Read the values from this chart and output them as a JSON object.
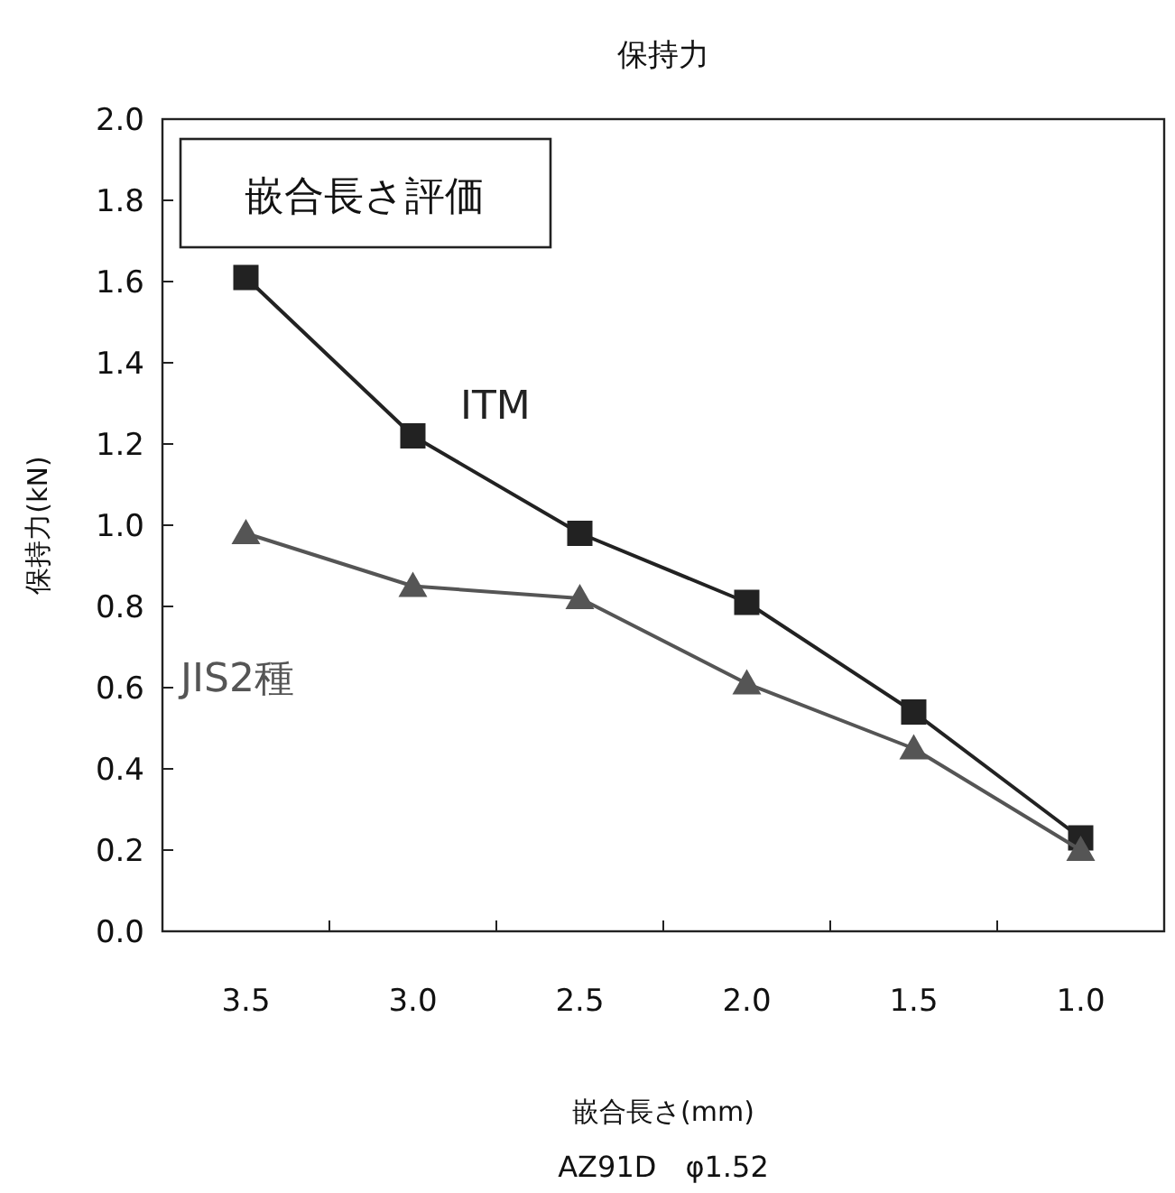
{
  "chart_data": {
    "type": "line",
    "title": "保持力",
    "xlabel": "嵌合長さ(mm)",
    "ylabel": "保持力(kN)",
    "categories": [
      "3.5",
      "3.0",
      "2.5",
      "2.0",
      "1.5",
      "1.0"
    ],
    "series": [
      {
        "name": "ITM",
        "color": "#222222",
        "marker": "square",
        "values": [
          1.61,
          1.22,
          0.98,
          0.81,
          0.54,
          0.23
        ]
      },
      {
        "name": "JIS2種",
        "color": "#555555",
        "marker": "triangle",
        "values": [
          0.98,
          0.85,
          0.82,
          0.61,
          0.45,
          0.2
        ]
      }
    ],
    "ylim": [
      0,
      2.0
    ],
    "yticks": [
      {
        "value": 0,
        "label": "0.0"
      },
      0.2,
      0.4,
      0.6,
      0.8,
      {
        "value": 1,
        "label": "1.0"
      },
      1.2,
      1.4,
      1.6,
      1.8,
      {
        "value": 2,
        "label": "2.0"
      }
    ],
    "grid": false,
    "legend": false,
    "line_style": "solid",
    "annotations": [
      "嵌合長さ評価",
      "AZ91D　φ1.52"
    ]
  }
}
